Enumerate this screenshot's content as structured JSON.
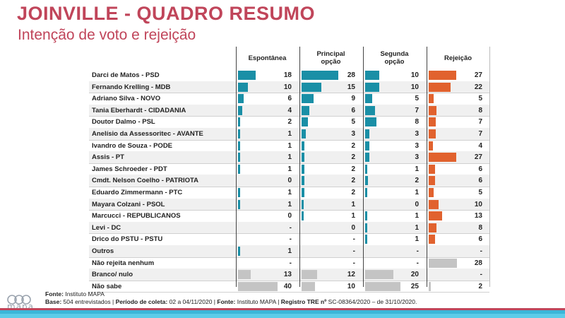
{
  "header": {
    "title": "JOINVILLE - QUADRO RESUMO",
    "subtitle": "Intenção de voto e rejeição"
  },
  "colors": {
    "teal": "#1a8fa6",
    "orange": "#e1622e",
    "gray": "#c4c4c4",
    "title": "#c0455a"
  },
  "chart_data": {
    "type": "table",
    "columns": [
      "Espontânea",
      "Principal opção",
      "Segunda opção",
      "Rejeição"
    ],
    "column_max": [
      40,
      28,
      25,
      28
    ],
    "rows": [
      {
        "name": "Darci de Matos - PSD",
        "values": [
          "18",
          "28",
          "10",
          "27"
        ],
        "kind": "candidate"
      },
      {
        "name": "Fernando Krelling - MDB",
        "values": [
          "10",
          "15",
          "10",
          "22"
        ],
        "kind": "candidate"
      },
      {
        "name": "Adriano Silva - NOVO",
        "values": [
          "6",
          "9",
          "5",
          "5"
        ],
        "kind": "candidate"
      },
      {
        "name": "Tania Eberhardt - CIDADANIA",
        "values": [
          "4",
          "6",
          "7",
          "8"
        ],
        "kind": "candidate"
      },
      {
        "name": "Doutor Dalmo - PSL",
        "values": [
          "2",
          "5",
          "8",
          "7"
        ],
        "kind": "candidate"
      },
      {
        "name": "Anelísio da Assessoritec - AVANTE",
        "values": [
          "1",
          "3",
          "3",
          "7"
        ],
        "kind": "candidate"
      },
      {
        "name": "Ivandro de Souza - PODE",
        "values": [
          "1",
          "2",
          "3",
          "4"
        ],
        "kind": "candidate"
      },
      {
        "name": "Assis - PT",
        "values": [
          "1",
          "2",
          "3",
          "27"
        ],
        "kind": "candidate"
      },
      {
        "name": "James Schroeder - PDT",
        "values": [
          "1",
          "2",
          "1",
          "6"
        ],
        "kind": "candidate"
      },
      {
        "name": "Cmdt. Nelson Coelho - PATRIOTA",
        "values": [
          "0",
          "2",
          "2",
          "6"
        ],
        "kind": "candidate"
      },
      {
        "name": "Eduardo Zimmermann - PTC",
        "values": [
          "1",
          "2",
          "1",
          "5"
        ],
        "kind": "candidate"
      },
      {
        "name": "Mayara Colzani - PSOL",
        "values": [
          "1",
          "1",
          "0",
          "10"
        ],
        "kind": "candidate"
      },
      {
        "name": "Marcucci - REPUBLICANOS",
        "values": [
          "0",
          "1",
          "1",
          "13"
        ],
        "kind": "candidate"
      },
      {
        "name": "Levi - DC",
        "values": [
          "-",
          "0",
          "1",
          "8"
        ],
        "kind": "candidate"
      },
      {
        "name": "Drico do PSTU - PSTU",
        "values": [
          "-",
          "-",
          "1",
          "6"
        ],
        "kind": "candidate"
      },
      {
        "name": "Outros",
        "values": [
          "1",
          "-",
          "-",
          "-"
        ],
        "kind": "candidate"
      },
      {
        "name": "Não rejeita nenhum",
        "values": [
          "-",
          "-",
          "-",
          "28"
        ],
        "kind": "other"
      },
      {
        "name": "Branco/ nulo",
        "values": [
          "13",
          "12",
          "20",
          "-"
        ],
        "kind": "other"
      },
      {
        "name": "Não sabe",
        "values": [
          "40",
          "10",
          "25",
          "2"
        ],
        "kind": "other"
      }
    ]
  },
  "footer": {
    "source_label": "Fonte:",
    "source": "Instituto MAPA",
    "base_label": "Base:",
    "base": "504 entrevistados | ",
    "period_label": "Período de coleta:",
    "period": "02 a 04/11/2020 | ",
    "source2_label": "Fonte:",
    "source2": "Instituto MAPA | ",
    "tre_label": "Registro TRE nº",
    "tre": "SC-08364/2020 – de 31/10/2020."
  },
  "logo": {
    "text": "mapa"
  }
}
